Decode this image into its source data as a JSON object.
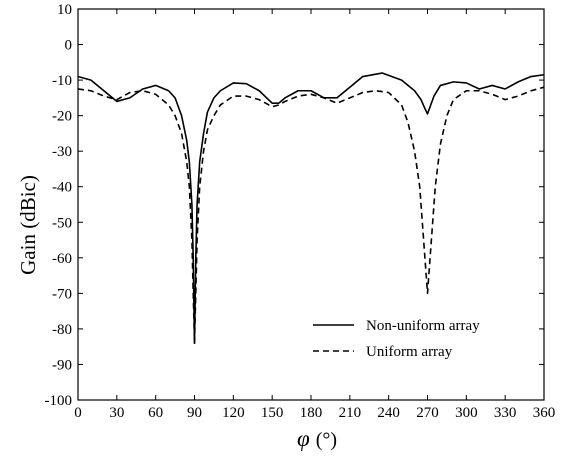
{
  "chart_data": {
    "type": "line",
    "xlabel_symbol": "φ",
    "xlabel_unit": "(°)",
    "ylabel": "Gain (dBic)",
    "xlim": [
      0,
      360
    ],
    "ylim": [
      -100,
      10
    ],
    "xticks": [
      0,
      30,
      60,
      90,
      120,
      150,
      180,
      210,
      240,
      270,
      300,
      330,
      360
    ],
    "yticks": [
      10,
      0,
      -10,
      -20,
      -30,
      -40,
      -50,
      -60,
      -70,
      -80,
      -90,
      -100
    ],
    "grid": false,
    "legend_position": "lower-right",
    "series": [
      {
        "name": "Non-uniform array",
        "style": "solid",
        "color": "#000000",
        "x": [
          0,
          10,
          20,
          30,
          40,
          50,
          60,
          70,
          75,
          80,
          84,
          86,
          88,
          89,
          90,
          91,
          92,
          94,
          97,
          100,
          105,
          110,
          120,
          130,
          140,
          150,
          155,
          160,
          170,
          180,
          190,
          200,
          210,
          220,
          235,
          250,
          260,
          265,
          268,
          270,
          272,
          275,
          280,
          290,
          300,
          310,
          320,
          330,
          340,
          350,
          360
        ],
        "y": [
          -9,
          -10,
          -13,
          -16,
          -15,
          -12.5,
          -11.5,
          -13,
          -15,
          -20,
          -27,
          -33,
          -45,
          -60,
          -84,
          -60,
          -45,
          -33,
          -25,
          -19,
          -15,
          -13,
          -10.8,
          -11,
          -13,
          -16.5,
          -16.5,
          -15,
          -13,
          -13,
          -15,
          -15,
          -12,
          -9,
          -8,
          -10,
          -13,
          -15.5,
          -18,
          -19.5,
          -17.5,
          -14.5,
          -11.5,
          -10.5,
          -10.8,
          -12.5,
          -11.5,
          -12.5,
          -10.5,
          -9,
          -8.5
        ]
      },
      {
        "name": "Uniform array",
        "style": "dashed",
        "color": "#000000",
        "x": [
          0,
          10,
          20,
          30,
          40,
          50,
          60,
          70,
          75,
          80,
          84,
          86,
          88,
          89,
          90,
          91,
          92,
          94,
          97,
          100,
          105,
          110,
          120,
          130,
          140,
          150,
          155,
          160,
          170,
          180,
          190,
          200,
          210,
          220,
          230,
          240,
          250,
          255,
          260,
          264,
          267,
          269,
          270,
          271,
          273,
          276,
          280,
          285,
          290,
          300,
          310,
          320,
          330,
          340,
          350,
          360
        ],
        "y": [
          -12.5,
          -13,
          -14.5,
          -15.5,
          -13.5,
          -13,
          -14,
          -17,
          -20,
          -25,
          -33,
          -40,
          -55,
          -70,
          -84,
          -70,
          -55,
          -40,
          -30,
          -24,
          -20,
          -17,
          -14.5,
          -14.5,
          -15.5,
          -17.5,
          -17,
          -16,
          -14.5,
          -14,
          -15,
          -16.5,
          -15,
          -13.5,
          -13,
          -13.5,
          -17,
          -22,
          -30,
          -40,
          -55,
          -65,
          -70,
          -65,
          -55,
          -40,
          -28,
          -20,
          -15.5,
          -13,
          -13,
          -14,
          -15.5,
          -14.5,
          -13,
          -12
        ]
      }
    ]
  }
}
